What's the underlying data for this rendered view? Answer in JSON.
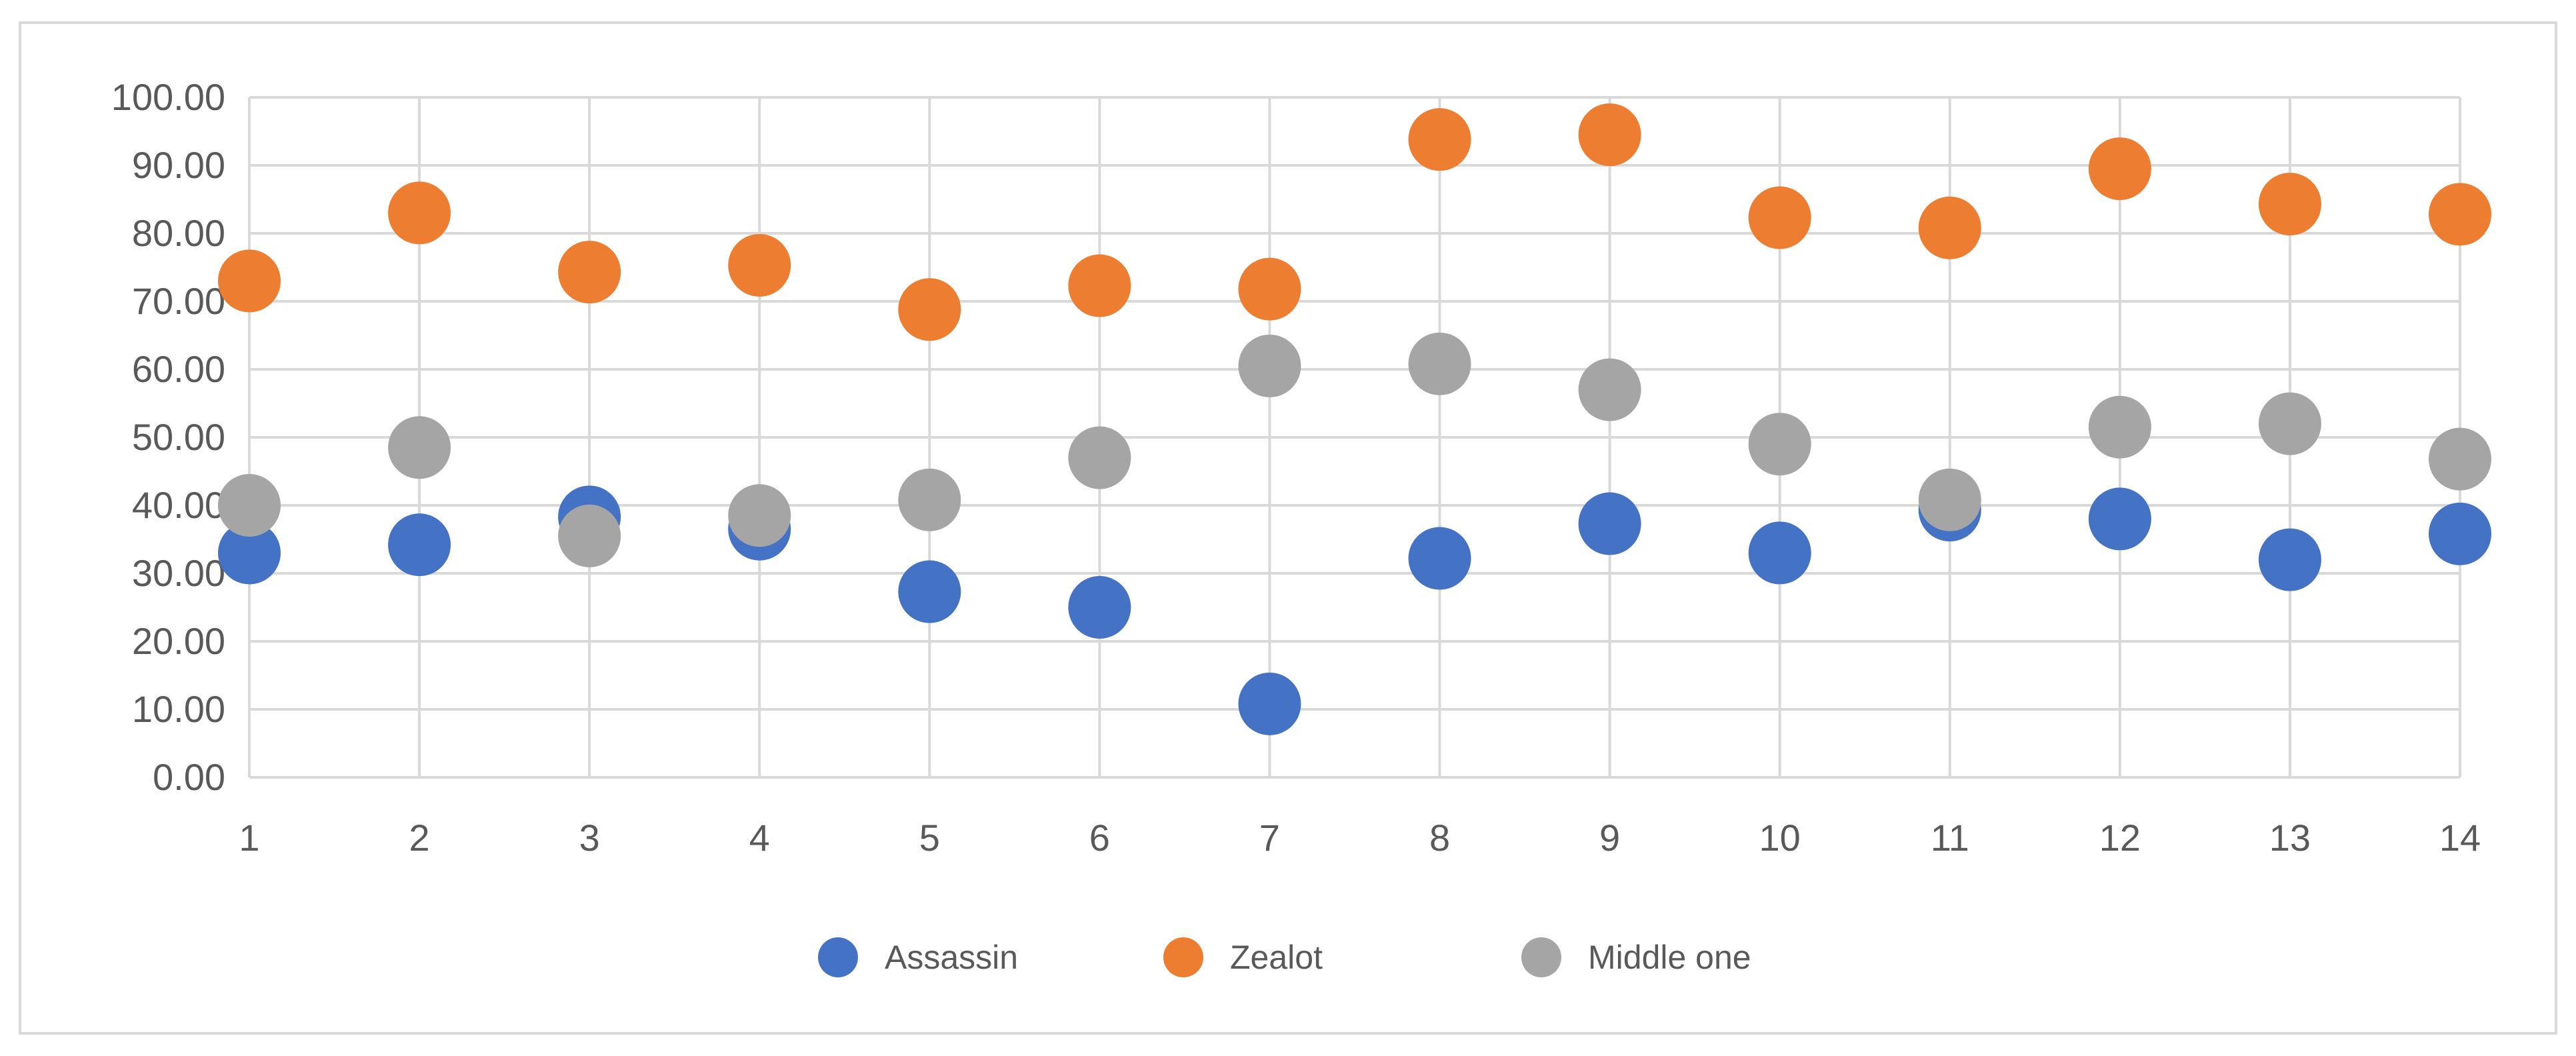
{
  "chart_data": {
    "type": "scatter",
    "title": "",
    "xlabel": "",
    "ylabel": "",
    "xlim": [
      1,
      14
    ],
    "ylim": [
      0,
      100
    ],
    "x_ticks": [
      "1",
      "2",
      "3",
      "4",
      "5",
      "6",
      "7",
      "8",
      "9",
      "10",
      "11",
      "12",
      "13",
      "14"
    ],
    "y_ticks": [
      "0.00",
      "10.00",
      "20.00",
      "30.00",
      "40.00",
      "50.00",
      "60.00",
      "70.00",
      "80.00",
      "90.00",
      "100.00"
    ],
    "grid": "both",
    "legend_position": "bottom",
    "series": [
      {
        "name": "Assassin",
        "color": "#4472c4",
        "x": [
          1,
          2,
          3,
          4,
          5,
          6,
          7,
          8,
          9,
          10,
          11,
          12,
          13,
          14
        ],
        "y": [
          33,
          34.2,
          38.3,
          36.5,
          27.3,
          25,
          10.8,
          32.2,
          37.3,
          33,
          39.3,
          38,
          32,
          35.8
        ]
      },
      {
        "name": "Zealot",
        "color": "#ed7d31",
        "x": [
          1,
          2,
          3,
          4,
          5,
          6,
          7,
          8,
          9,
          10,
          11,
          12,
          13,
          14
        ],
        "y": [
          73,
          83,
          74.3,
          75.3,
          68.8,
          72.3,
          71.8,
          93.8,
          94.5,
          82.3,
          80.8,
          89.5,
          84.3,
          82.8
        ]
      },
      {
        "name": "Middle one",
        "color": "#a5a5a5",
        "x": [
          1,
          2,
          3,
          4,
          5,
          6,
          7,
          8,
          9,
          10,
          11,
          12,
          13,
          14
        ],
        "y": [
          40,
          48.5,
          35.5,
          38.5,
          40.8,
          47,
          60.5,
          60.8,
          57,
          49,
          40.8,
          51.5,
          52,
          46.8
        ]
      }
    ]
  }
}
